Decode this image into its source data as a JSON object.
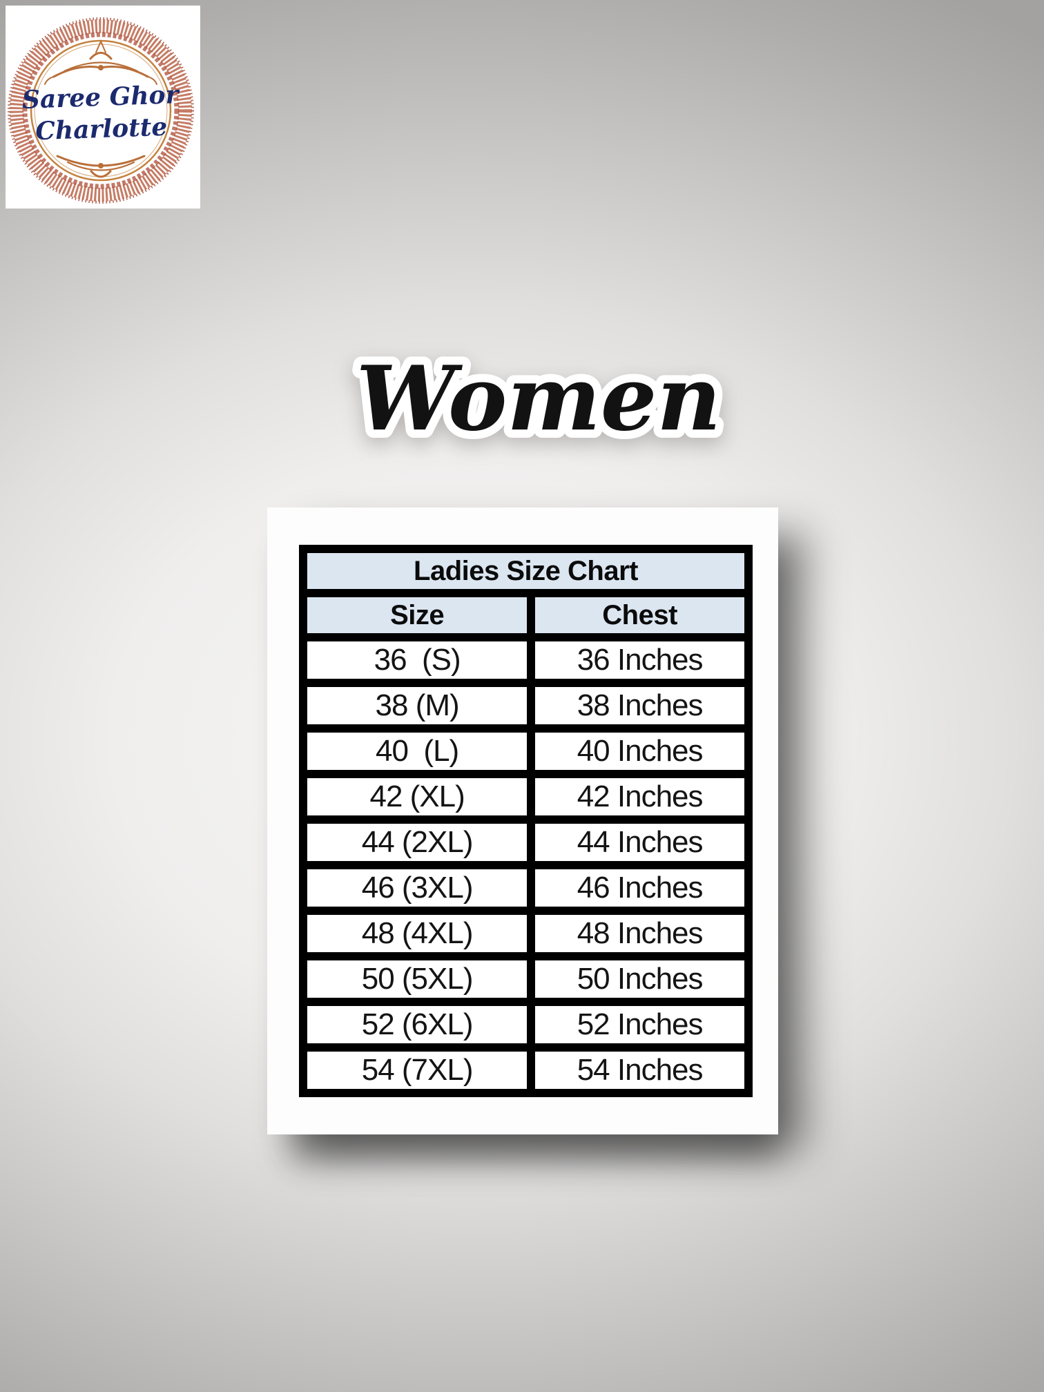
{
  "brand_logo": {
    "line1": "Saree Ghor",
    "line2": "Charlotte"
  },
  "section_title": {
    "text": "Women"
  },
  "size_chart": {
    "title": "Ladies Size Chart",
    "columns": [
      "Size",
      "Chest"
    ],
    "rows": [
      [
        "36  (S)",
        "36 Inches"
      ],
      [
        "38 (M)",
        "38 Inches"
      ],
      [
        "40  (L)",
        "40 Inches"
      ],
      [
        "42 (XL)",
        "42 Inches"
      ],
      [
        "44 (2XL)",
        "44 Inches"
      ],
      [
        "46 (3XL)",
        "46 Inches"
      ],
      [
        "48 (4XL)",
        "48 Inches"
      ],
      [
        "50 (5XL)",
        "50 Inches"
      ],
      [
        "52 (6XL)",
        "52 Inches"
      ],
      [
        "54 (7XL)",
        "54 Inches"
      ]
    ]
  },
  "colors": {
    "table_header_bg": "#dce6f1",
    "table_border": "#000000",
    "card_bg": "#fdfdfd",
    "logo_text": "#1c2a6e",
    "logo_ornament": "#b65b3e",
    "sticker_fill": "#121212",
    "sticker_outline": "#ffffff"
  },
  "chart_data": {
    "type": "table",
    "title": "Ladies Size Chart",
    "columns": [
      "Size",
      "Chest"
    ],
    "rows": [
      [
        "36 (S)",
        "36 Inches"
      ],
      [
        "38 (M)",
        "38 Inches"
      ],
      [
        "40 (L)",
        "40 Inches"
      ],
      [
        "42 (XL)",
        "42 Inches"
      ],
      [
        "44 (2XL)",
        "44 Inches"
      ],
      [
        "46 (3XL)",
        "46 Inches"
      ],
      [
        "48 (4XL)",
        "48 Inches"
      ],
      [
        "50 (5XL)",
        "50 Inches"
      ],
      [
        "52 (6XL)",
        "52 Inches"
      ],
      [
        "54 (7XL)",
        "54 Inches"
      ]
    ],
    "layout": {
      "legend": "none",
      "grid": "solid-black-borders",
      "header_rows": 2
    }
  }
}
